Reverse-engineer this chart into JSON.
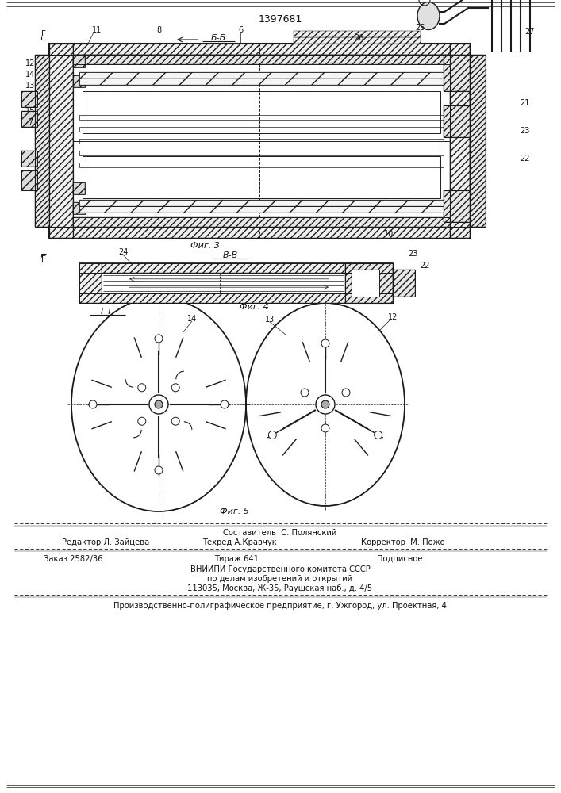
{
  "patent_number": "1397681",
  "fig3_label": "Фиг. 3",
  "fig4_label": "Фиг. 4",
  "fig5_label": "Фиг. 5",
  "section_bb": "Б-Б",
  "section_vv": "В-В",
  "section_gg": "Г-Г",
  "editor_line": "Редактор Л. Зайцева",
  "composer_line": "Составитель  С. Полянский",
  "techred_line": "Техред А.Кравчук",
  "corrector_line": "Корректор  М. Пожо",
  "order_line": "Заказ 2582/36",
  "tirazh_line": "Тираж 641",
  "podpisnoe_line": "Подписное",
  "vniiipi_line1": "ВНИИПИ Государственного комитета СССР",
  "vniiipi_line2": "по делам изобретений и открытий",
  "vniiipi_line3": "113035, Москва, Ж-35, Раушская наб., д. 4/5",
  "production_line": "Производственно-полиграфическое предприятие, г. Ужгород, ул. Проектная, 4",
  "bg_color": "#ffffff",
  "line_color": "#1a1a1a",
  "text_color": "#111111"
}
